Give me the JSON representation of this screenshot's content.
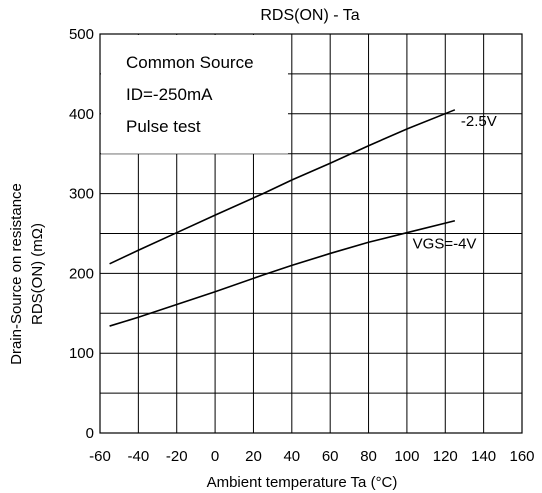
{
  "chart_data": {
    "type": "line",
    "title": "RDS(ON) - Ta",
    "xlabel": "Ambient temperature  Ta (°C)",
    "ylabel_line1": "Drain-Source on resistance",
    "ylabel_line2": "RDS(ON) (mΩ)",
    "xlim": [
      -60,
      160
    ],
    "ylim": [
      0,
      500
    ],
    "x_ticks": [
      -60,
      -40,
      -20,
      0,
      20,
      40,
      60,
      80,
      100,
      120,
      140,
      160
    ],
    "y_ticks": [
      0,
      100,
      200,
      300,
      400,
      500
    ],
    "grid": true,
    "annotations": [
      "Common Source",
      "ID=-250mA",
      "Pulse test"
    ],
    "series": [
      {
        "name": "-2.5V",
        "x": [
          -55,
          -40,
          -20,
          0,
          25,
          40,
          60,
          80,
          100,
          125
        ],
        "values": [
          212,
          229,
          251,
          273,
          300,
          317,
          338,
          360,
          381,
          405
        ]
      },
      {
        "name": "VGS=-4V",
        "x": [
          -55,
          -40,
          -20,
          0,
          25,
          40,
          60,
          80,
          100,
          125
        ],
        "values": [
          134,
          145,
          161,
          177,
          198,
          210,
          225,
          239,
          251,
          266
        ]
      }
    ]
  }
}
